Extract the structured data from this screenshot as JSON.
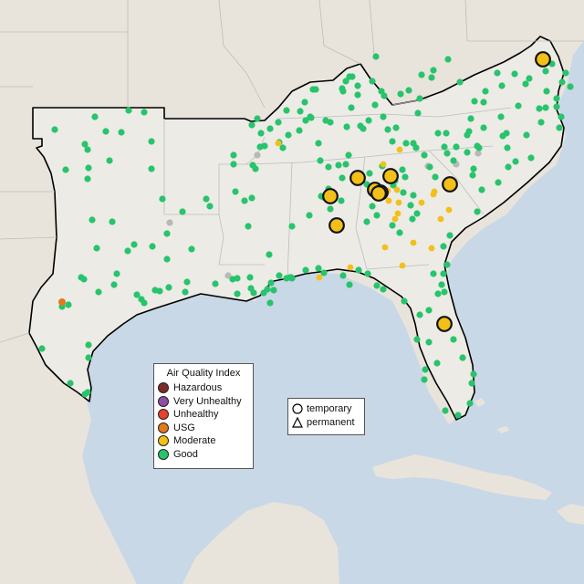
{
  "map": {
    "land_color": "#ecebe6",
    "outside_land_color": "#e8e4dc",
    "water_color": "#c9d8e6",
    "border_color": "#000000",
    "state_line_color": "#bdbdbd"
  },
  "legend": {
    "title": "Air Quality Index",
    "categories": [
      {
        "label": "Hazardous",
        "color": "#7e2b2b"
      },
      {
        "label": "Very Unhealthy",
        "color": "#8e4fa3"
      },
      {
        "label": "Unhealthy",
        "color": "#e8412d"
      },
      {
        "label": "USG",
        "color": "#e3791c"
      },
      {
        "label": "Moderate",
        "color": "#f2c018"
      },
      {
        "label": "Good",
        "color": "#27c46c"
      }
    ]
  },
  "shape_legend": {
    "temporary": "temporary",
    "permanent": "permanent"
  },
  "monitors": {
    "no_data_color": "#b8b8b8",
    "counts": {
      "good": 240,
      "moderate_small": 20,
      "moderate_large_temporary": 10,
      "usg": 1,
      "no_data": 6
    }
  }
}
